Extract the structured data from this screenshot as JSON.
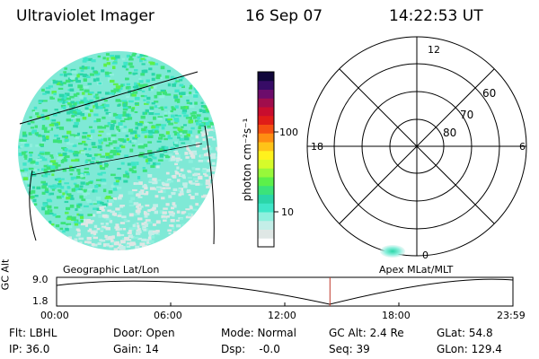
{
  "header": {
    "title": "Ultraviolet Imager",
    "date": "16 Sep 07",
    "time": "14:22:53 UT"
  },
  "colorbar": {
    "unit_label": "photon cm⁻²s⁻¹",
    "ticks": [
      "100",
      "10"
    ],
    "colors": [
      "#ffffff",
      "#dfe7e5",
      "#c4eee8",
      "#8ff0de",
      "#3fe6c8",
      "#2ad6a8",
      "#3be37a",
      "#5cf04a",
      "#98f83a",
      "#d6fb2a",
      "#fff21d",
      "#ffc318",
      "#ff8d12",
      "#f54f12",
      "#e01c18",
      "#c90d2e",
      "#a00d4c",
      "#6c0c6b",
      "#370c66",
      "#10063a"
    ]
  },
  "globe_label": "Geographic Lat/Lon",
  "polar": {
    "label": "Apex MLat/MLT",
    "mlt_labels": {
      "top": "12",
      "left": "18",
      "right": "6",
      "bottom": "0"
    },
    "lat_labels": [
      "60",
      "70",
      "80"
    ]
  },
  "altitude_plot": {
    "ylabel": "GC Alt",
    "ymax": "9.0",
    "ymin": "1.8",
    "x_ticks": [
      "00:00",
      "06:00",
      "12:00",
      "18:00",
      "23:59"
    ],
    "current_time_fraction": 0.599
  },
  "info": {
    "flt": "Flt: LBHL",
    "door": "Door: Open",
    "mode": "Mode: Normal",
    "gc_alt": "GC Alt: 2.4 Re",
    "glat": "GLat:  54.8",
    "ip": "IP: 36.0",
    "gain": "Gain: 14",
    "dsp": "Dsp:    -0.0",
    "seq": "Seq: 39",
    "glon": "GLon: 129.4"
  }
}
